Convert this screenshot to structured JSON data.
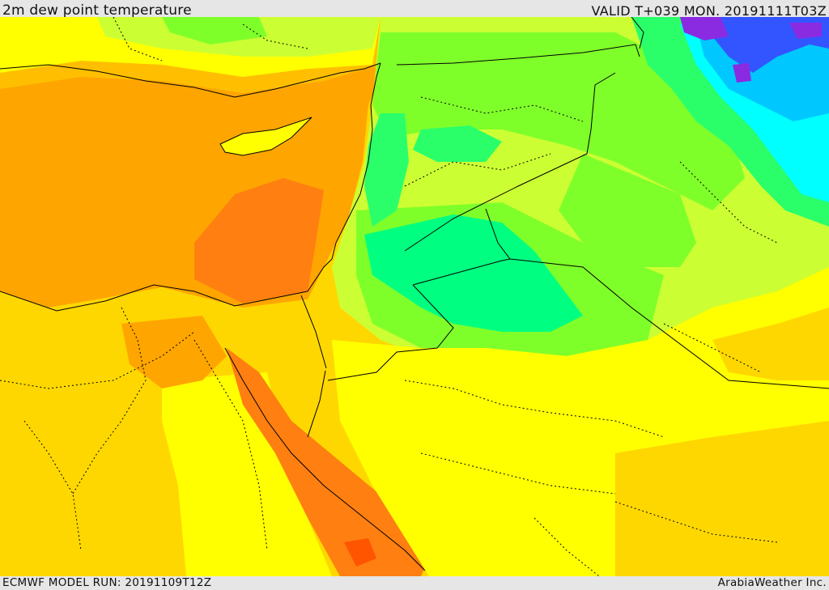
{
  "header": {
    "title": "2m dew point temperature",
    "valid": "VALID T+039 MON. 20191111T03Z"
  },
  "footer": {
    "model_run": "ECMWF MODEL RUN: 20191109T12Z",
    "credit": "ArabiaWeather Inc."
  },
  "palette": {
    "orange_dark": "#ff7f10",
    "orange": "#ffa500",
    "orange_light": "#ffbf00",
    "yellow_orange": "#ffd700",
    "yellow": "#ffff00",
    "yellow_green": "#ccff33",
    "light_green": "#7fff2a",
    "green": "#2aff6a",
    "spring_green": "#00ff80",
    "cyan": "#00ffff",
    "sky_blue": "#00c8ff",
    "blue": "#3355ff",
    "purple": "#8a2be2",
    "red_orange": "#ff5500",
    "sea": "#ffa500"
  }
}
